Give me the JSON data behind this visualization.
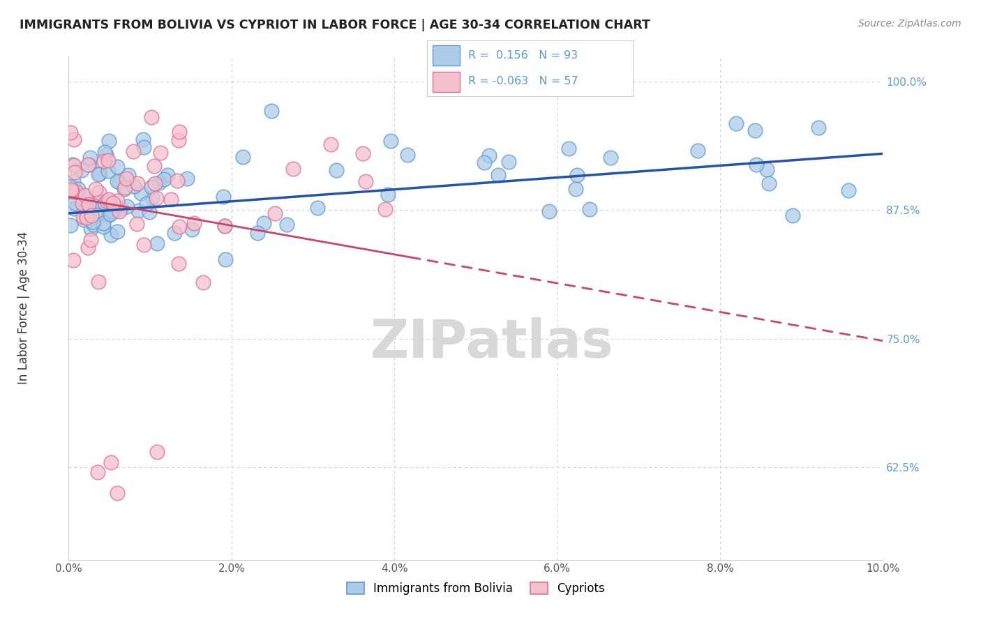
{
  "title": "IMMIGRANTS FROM BOLIVIA VS CYPRIOT IN LABOR FORCE | AGE 30-34 CORRELATION CHART",
  "source_text": "Source: ZipAtlas.com",
  "ylabel": "In Labor Force | Age 30-34",
  "xlim": [
    0.0,
    0.1
  ],
  "ylim": [
    0.535,
    1.025
  ],
  "xticks": [
    0.0,
    0.02,
    0.04,
    0.06,
    0.08,
    0.1
  ],
  "xticklabels": [
    "0.0%",
    "2.0%",
    "4.0%",
    "6.0%",
    "8.0%",
    "10.0%"
  ],
  "yticks": [
    0.625,
    0.75,
    0.875,
    1.0
  ],
  "yticklabels": [
    "62.5%",
    "75.0%",
    "87.5%",
    "100.0%"
  ],
  "blue_color": "#aecce8",
  "blue_edge": "#5b9bd5",
  "pink_color": "#f5c0ce",
  "pink_edge": "#e07090",
  "trend_blue": "#2255aa",
  "trend_pink": "#cc4466",
  "ytick_color": "#5b9bd5",
  "R_blue": 0.156,
  "N_blue": 93,
  "R_pink": -0.063,
  "N_pink": 57,
  "legend_label_blue": "Immigrants from Bolivia",
  "legend_label_pink": "Cypriots",
  "watermark": "ZIPatlas",
  "watermark_color": "#d8d8d8"
}
